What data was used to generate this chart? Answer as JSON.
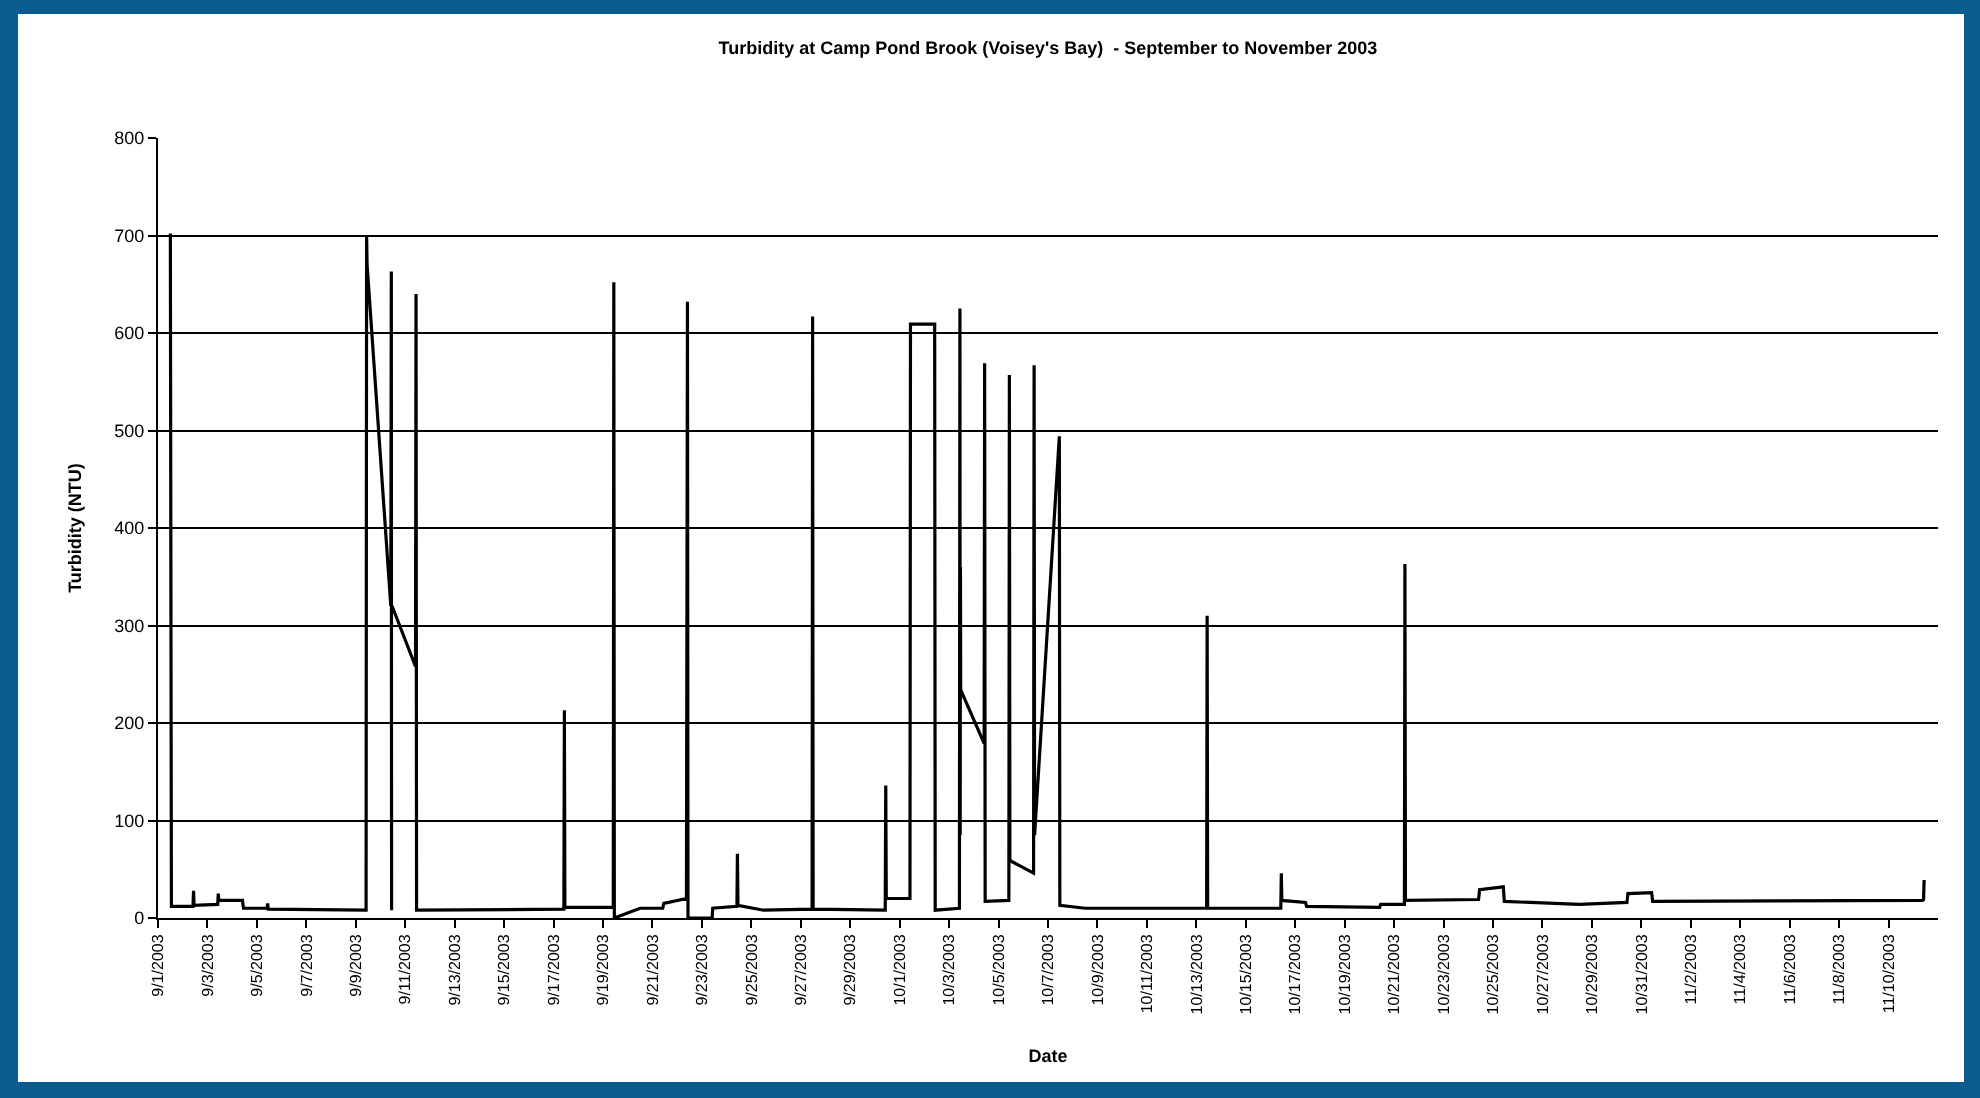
{
  "chart_data": {
    "type": "line",
    "title": "Turbidity at Camp Pond Brook (Voisey's Bay)  - September to November 2003",
    "xlabel": "Date",
    "ylabel": "Turbidity (NTU)",
    "x": [
      "2003-09-01T12:00",
      "2003-09-01T13:00",
      "2003-09-02T10:00",
      "2003-09-02T10:30",
      "2003-09-02T11:00",
      "2003-09-03T10:00",
      "2003-09-03T10:30",
      "2003-09-03T11:00",
      "2003-09-04T10:00",
      "2003-09-04T11:00",
      "2003-09-05T10:00",
      "2003-09-05T10:30",
      "2003-09-05T11:00",
      "2003-09-09T10:00",
      "2003-09-09T10:30",
      "2003-09-09T11:00",
      "2003-09-10T10:00",
      "2003-09-10T10:30",
      "2003-09-10T10:45",
      "2003-09-10T11:00",
      "2003-09-10T11:15",
      "2003-09-11T10:00",
      "2003-09-11T10:30",
      "2003-09-11T11:00",
      "2003-09-17T10:00",
      "2003-09-17T10:30",
      "2003-09-17T11:00",
      "2003-09-19T10:00",
      "2003-09-19T10:30",
      "2003-09-19T11:00",
      "2003-09-20T12:00",
      "2003-09-21T10:00",
      "2003-09-21T11:00",
      "2003-09-22T09:00",
      "2003-09-22T10:00",
      "2003-09-22T10:30",
      "2003-09-23T10:00",
      "2003-09-23T10:30",
      "2003-09-24T10:00",
      "2003-09-24T10:30",
      "2003-09-24T11:00",
      "2003-09-25T12:00",
      "2003-09-27T11:00",
      "2003-09-27T11:30",
      "2003-09-27T12:00",
      "2003-09-30T10:00",
      "2003-09-30T10:30",
      "2003-09-30T11:00",
      "2003-10-01T10:00",
      "2003-10-01T10:30",
      "2003-10-02T10:00",
      "2003-10-02T10:30",
      "2003-10-03T10:00",
      "2003-10-03T10:30",
      "2003-10-03T10:45",
      "2003-10-03T11:00",
      "2003-10-03T11:15",
      "2003-10-04T10:00",
      "2003-10-04T10:30",
      "2003-10-04T11:00",
      "2003-10-05T10:00",
      "2003-10-05T10:30",
      "2003-10-05T11:00",
      "2003-10-06T10:00",
      "2003-10-06T10:30",
      "2003-10-06T11:00",
      "2003-10-07T11:00",
      "2003-10-07T11:30",
      "2003-10-08T12:00",
      "2003-10-13T10:00",
      "2003-10-13T10:30",
      "2003-10-13T11:00",
      "2003-10-16T10:00",
      "2003-10-16T10:30",
      "2003-10-16T11:00",
      "2003-10-17T10:00",
      "2003-10-17T11:00",
      "2003-10-20T10:00",
      "2003-10-20T11:00",
      "2003-10-21T10:00",
      "2003-10-21T10:30",
      "2003-10-21T11:00",
      "2003-10-24T10:00",
      "2003-10-24T11:00",
      "2003-10-25T10:00",
      "2003-10-25T11:00",
      "2003-10-28T12:00",
      "2003-10-30T10:00",
      "2003-10-30T11:00",
      "2003-10-31T10:00",
      "2003-10-31T11:00",
      "2003-11-11T09:00",
      "2003-11-11T10:00",
      "2003-11-11T10:30"
    ],
    "series": [
      {
        "color": "#000000",
        "values": [
          702,
          12,
          12,
          28,
          13,
          14,
          25,
          18,
          18,
          10,
          10,
          15,
          9,
          8,
          700,
          670,
          320,
          663,
          8,
          null,
          320,
          258,
          640,
          8,
          9,
          213,
          11,
          11,
          652,
          0,
          10,
          10,
          15,
          20,
          632,
          0,
          0,
          10,
          12,
          66,
          13,
          8,
          9,
          617,
          9,
          8,
          136,
          20,
          20,
          609,
          609,
          8,
          10,
          625,
          85,
          360,
          234,
          179,
          569,
          17,
          18,
          557,
          59,
          46,
          567,
          85,
          494,
          13,
          10,
          10,
          310,
          10,
          10,
          46,
          18,
          16,
          12,
          11,
          14,
          14,
          363,
          18,
          19,
          29,
          32,
          17,
          14,
          16,
          25,
          26,
          17,
          18,
          19,
          39
        ]
      }
    ],
    "xlim": [
      "2003-09-01",
      "2003-11-12"
    ],
    "xticks": [
      {
        "value": "2003-09-01",
        "label": "9/1/2003"
      },
      {
        "value": "2003-09-03",
        "label": "9/3/2003"
      },
      {
        "value": "2003-09-05",
        "label": "9/5/2003"
      },
      {
        "value": "2003-09-07",
        "label": "9/7/2003"
      },
      {
        "value": "2003-09-09",
        "label": "9/9/2003"
      },
      {
        "value": "2003-09-11",
        "label": "9/11/2003"
      },
      {
        "value": "2003-09-13",
        "label": "9/13/2003"
      },
      {
        "value": "2003-09-15",
        "label": "9/15/2003"
      },
      {
        "value": "2003-09-17",
        "label": "9/17/2003"
      },
      {
        "value": "2003-09-19",
        "label": "9/19/2003"
      },
      {
        "value": "2003-09-21",
        "label": "9/21/2003"
      },
      {
        "value": "2003-09-23",
        "label": "9/23/2003"
      },
      {
        "value": "2003-09-25",
        "label": "9/25/2003"
      },
      {
        "value": "2003-09-27",
        "label": "9/27/2003"
      },
      {
        "value": "2003-09-29",
        "label": "9/29/2003"
      },
      {
        "value": "2003-10-01",
        "label": "10/1/2003"
      },
      {
        "value": "2003-10-03",
        "label": "10/3/2003"
      },
      {
        "value": "2003-10-05",
        "label": "10/5/2003"
      },
      {
        "value": "2003-10-07",
        "label": "10/7/2003"
      },
      {
        "value": "2003-10-09",
        "label": "10/9/2003"
      },
      {
        "value": "2003-10-11",
        "label": "10/11/2003"
      },
      {
        "value": "2003-10-13",
        "label": "10/13/2003"
      },
      {
        "value": "2003-10-15",
        "label": "10/15/2003"
      },
      {
        "value": "2003-10-17",
        "label": "10/17/2003"
      },
      {
        "value": "2003-10-19",
        "label": "10/19/2003"
      },
      {
        "value": "2003-10-21",
        "label": "10/21/2003"
      },
      {
        "value": "2003-10-23",
        "label": "10/23/2003"
      },
      {
        "value": "2003-10-25",
        "label": "10/25/2003"
      },
      {
        "value": "2003-10-27",
        "label": "10/27/2003"
      },
      {
        "value": "2003-10-29",
        "label": "10/29/2003"
      },
      {
        "value": "2003-10-31",
        "label": "10/31/2003"
      },
      {
        "value": "2003-11-02",
        "label": "11/2/2003"
      },
      {
        "value": "2003-11-04",
        "label": "11/4/2003"
      },
      {
        "value": "2003-11-06",
        "label": "11/6/2003"
      },
      {
        "value": "2003-11-08",
        "label": "11/8/2003"
      },
      {
        "value": "2003-11-10",
        "label": "11/10/2003"
      }
    ],
    "ylim": [
      0,
      800
    ],
    "yticks": [
      0,
      100,
      200,
      300,
      400,
      500,
      600,
      700,
      800
    ],
    "grid": "y",
    "marker": "none",
    "line_style": "solid"
  }
}
